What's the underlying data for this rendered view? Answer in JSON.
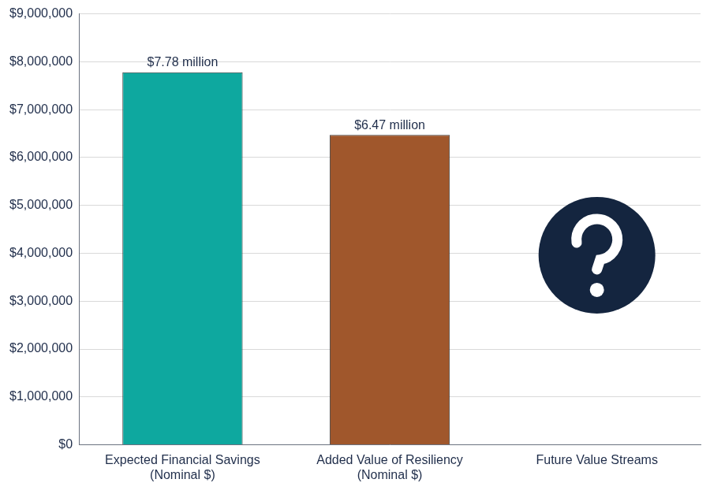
{
  "chart_data": {
    "type": "bar",
    "categories": [
      "Expected Financial Savings\n(Nominal $)",
      "Added Value of Resiliency\n(Nominal $)",
      "Future Value Streams"
    ],
    "values": [
      7780000,
      6470000,
      null
    ],
    "value_labels": [
      "$7.78 million",
      "$6.47 million",
      null
    ],
    "colors": [
      "#0ea89f",
      "#a0572c",
      "#14253f"
    ],
    "ylim": [
      0,
      9000000
    ],
    "yticks": [
      {
        "value": 0,
        "label": "$0"
      },
      {
        "value": 1000000,
        "label": "$1,000,000"
      },
      {
        "value": 2000000,
        "label": "$2,000,000"
      },
      {
        "value": 3000000,
        "label": "$3,000,000"
      },
      {
        "value": 4000000,
        "label": "$4,000,000"
      },
      {
        "value": 5000000,
        "label": "$5,000,000"
      },
      {
        "value": 6000000,
        "label": "$6,000,000"
      },
      {
        "value": 7000000,
        "label": "$7,000,000"
      },
      {
        "value": 8000000,
        "label": "$8,000,000"
      },
      {
        "value": 9000000,
        "label": "$9,000,000"
      }
    ],
    "grid": true,
    "data_labels": true
  }
}
